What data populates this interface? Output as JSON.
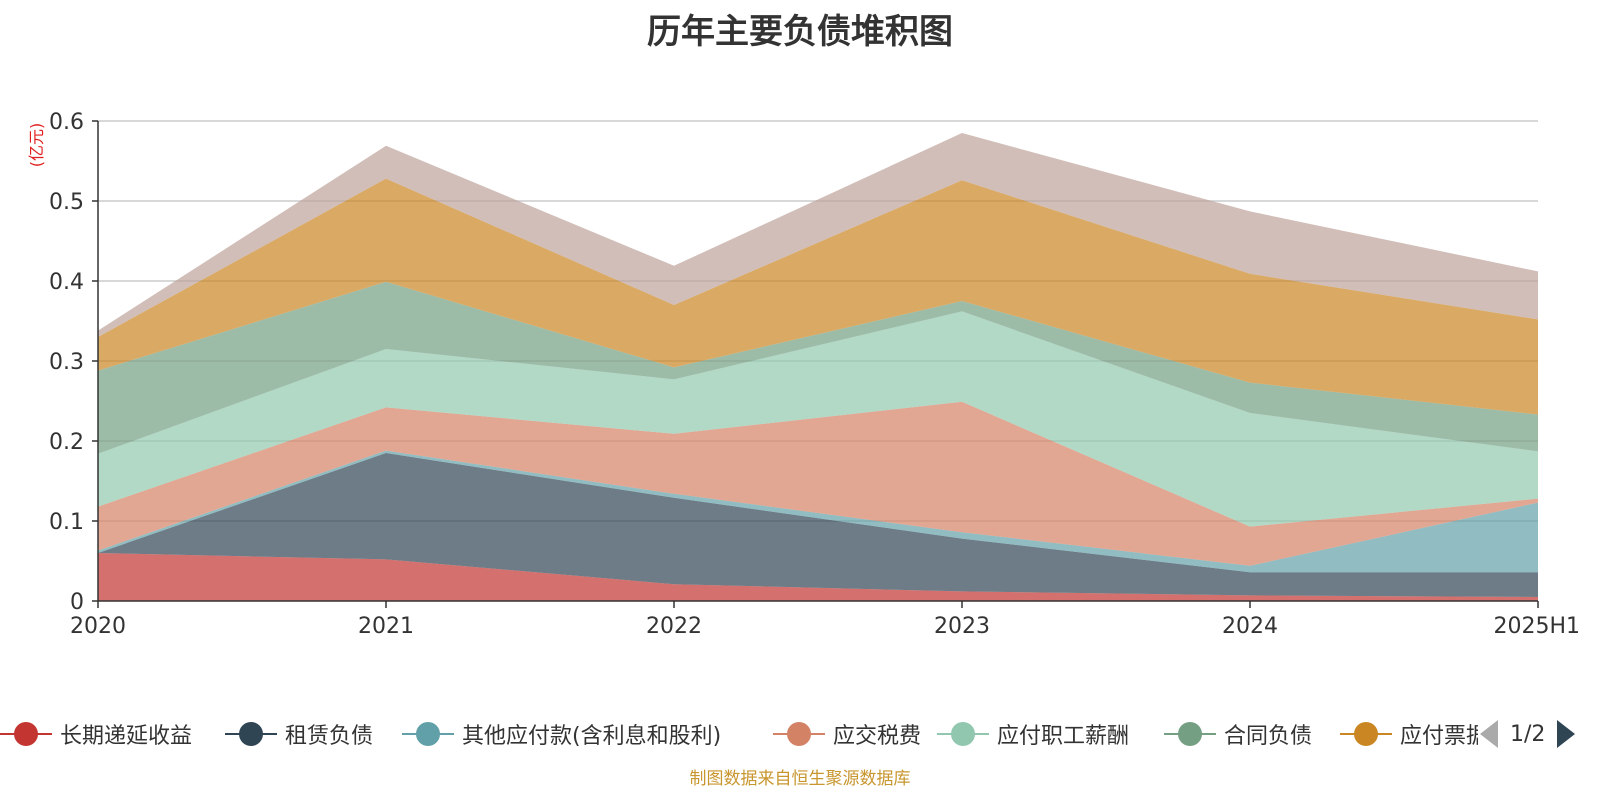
{
  "chart_data": {
    "type": "area",
    "stacked": true,
    "title": "历年主要负债堆积图",
    "ylabel": "(亿元)",
    "xlabel": "",
    "categories": [
      "2020",
      "2021",
      "2022",
      "2023",
      "2024",
      "2025H1"
    ],
    "ylim": [
      0,
      0.6
    ],
    "yticks": [
      "0",
      "0.1",
      "0.2",
      "0.3",
      "0.4",
      "0.5",
      "0.6"
    ],
    "grid": true,
    "legend_position": "bottom",
    "series": [
      {
        "name": "长期递延收益",
        "color": "#c23531",
        "values": [
          0.06,
          0.052,
          0.021,
          0.012,
          0.007,
          0.005
        ]
      },
      {
        "name": "租赁负债",
        "color": "#2f4554",
        "values": [
          0.0,
          0.133,
          0.108,
          0.066,
          0.029,
          0.031
        ]
      },
      {
        "name": "其他应付款(含利息和股利)",
        "color": "#61a0a8",
        "values": [
          0.003,
          0.003,
          0.005,
          0.008,
          0.008,
          0.087
        ]
      },
      {
        "name": "应交税费",
        "color": "#d48265",
        "values": [
          0.055,
          0.054,
          0.075,
          0.163,
          0.049,
          0.005
        ]
      },
      {
        "name": "应付职工薪酬",
        "color": "#91c7ae",
        "values": [
          0.066,
          0.073,
          0.068,
          0.113,
          0.142,
          0.059
        ]
      },
      {
        "name": "合同负债",
        "color": "#749f83",
        "values": [
          0.104,
          0.084,
          0.015,
          0.013,
          0.038,
          0.046
        ]
      },
      {
        "name": "应付票据",
        "color": "#ca8622",
        "values": [
          0.042,
          0.129,
          0.078,
          0.151,
          0.136,
          0.119
        ]
      },
      {
        "name": "",
        "color": "#bda29a",
        "values": [
          0.008,
          0.041,
          0.049,
          0.059,
          0.078,
          0.06
        ]
      }
    ]
  },
  "legend": {
    "items": [
      {
        "label": "长期递延收益",
        "color": "#c23531"
      },
      {
        "label": "租赁负债",
        "color": "#2f4554"
      },
      {
        "label": "其他应付款(含利息和股利)",
        "color": "#61a0a8"
      },
      {
        "label": "应交税费",
        "color": "#d48265"
      },
      {
        "label": "应付职工薪酬",
        "color": "#91c7ae"
      },
      {
        "label": "合同负债",
        "color": "#749f83"
      },
      {
        "label": "应付票据",
        "color": "#ca8622"
      }
    ],
    "page_indicator": "1/2"
  },
  "source": "制图数据来自恒生聚源数据库"
}
